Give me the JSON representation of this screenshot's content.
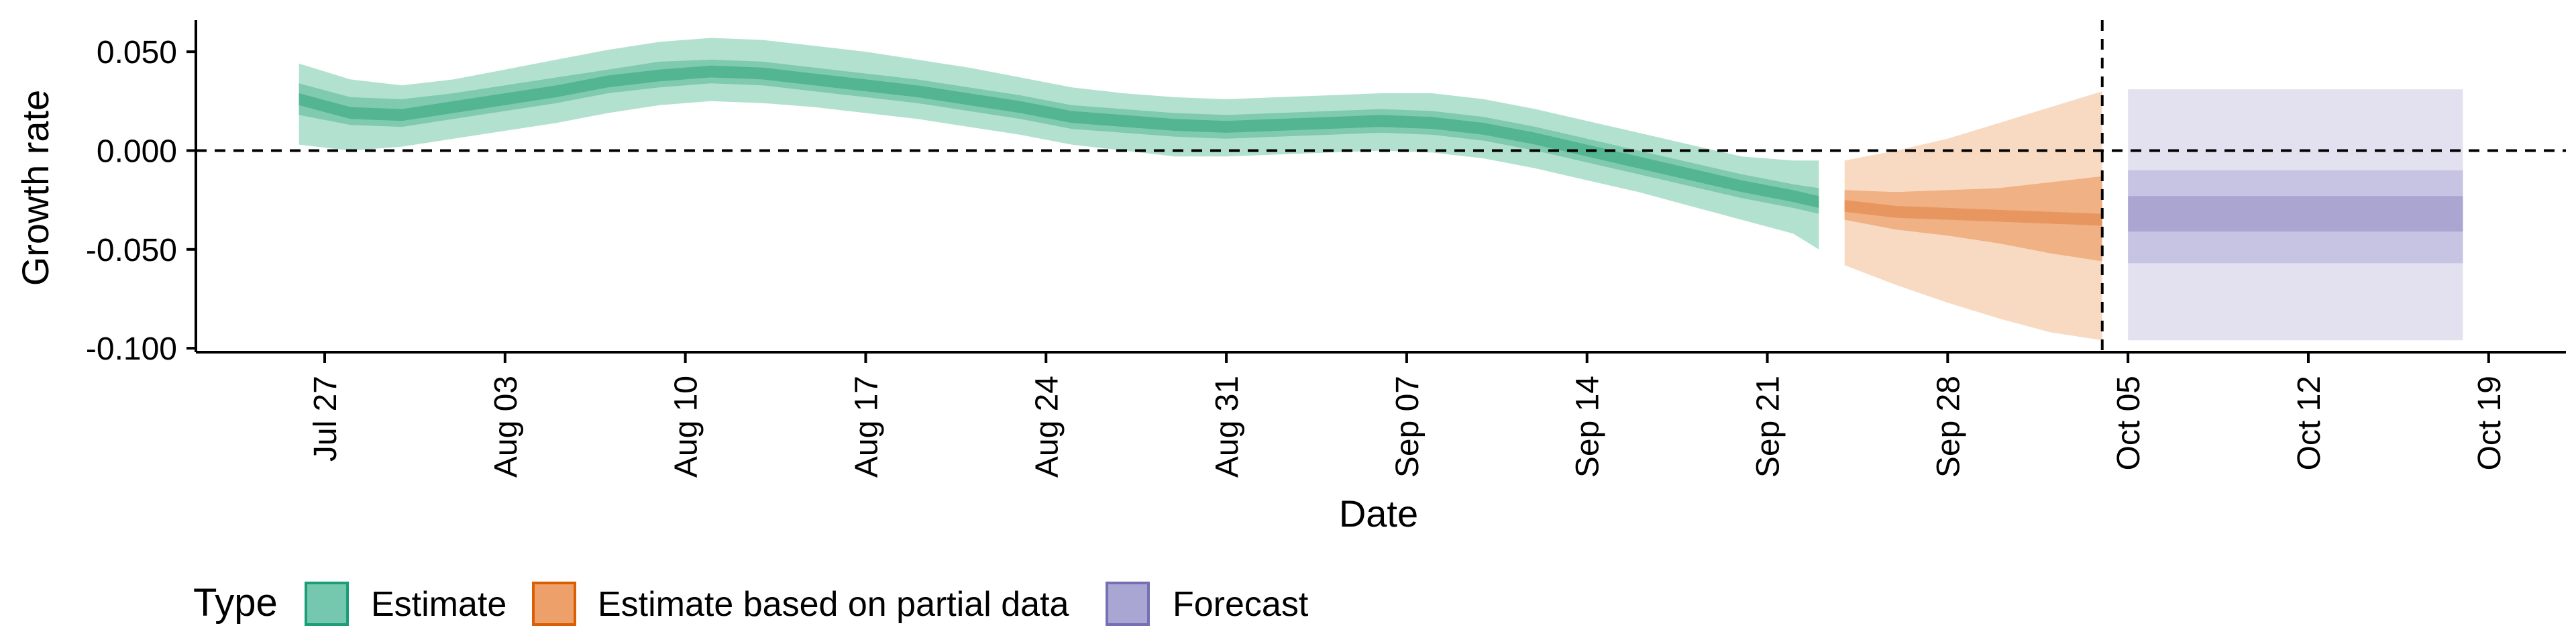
{
  "chart_data": {
    "type": "area",
    "xlabel": "Date",
    "ylabel": "Growth rate",
    "xlim": [
      "2020-07-22",
      "2020-10-22"
    ],
    "ylim": [
      -0.102,
      0.066
    ],
    "x_ticks": [
      "2020-07-27",
      "2020-08-03",
      "2020-08-10",
      "2020-08-17",
      "2020-08-24",
      "2020-08-31",
      "2020-09-07",
      "2020-09-14",
      "2020-09-21",
      "2020-09-28",
      "2020-10-05",
      "2020-10-12",
      "2020-10-19"
    ],
    "x_tick_labels": [
      "Jul 27",
      "Aug 03",
      "Aug 10",
      "Aug 17",
      "Aug 24",
      "Aug 31",
      "Sep 07",
      "Sep 14",
      "Sep 21",
      "Sep 28",
      "Oct 05",
      "Oct 12",
      "Oct 19"
    ],
    "y_ticks": [
      0.05,
      0.0,
      -0.05,
      -0.1
    ],
    "y_tick_labels": [
      "0.050",
      "0.000",
      "-0.050",
      "-0.100"
    ],
    "reference_lines": {
      "horizontal_y": 0.0,
      "vertical_x": "2020-10-04"
    },
    "grid": false,
    "legend": {
      "title": "Type",
      "placement": "bottom-left",
      "entries": [
        "Estimate",
        "Estimate based on partial data",
        "Forecast"
      ]
    },
    "series": [
      {
        "name": "Estimate",
        "color": "#1b9e77",
        "points": [
          {
            "x": "2020-07-26",
            "median": 0.026,
            "lo50": 0.018,
            "hi50": 0.034,
            "lo90": 0.003,
            "hi90": 0.044
          },
          {
            "x": "2020-07-28",
            "median": 0.019,
            "lo50": 0.013,
            "hi50": 0.027,
            "lo90": 0.0,
            "hi90": 0.036
          },
          {
            "x": "2020-07-30",
            "median": 0.018,
            "lo50": 0.012,
            "hi50": 0.026,
            "lo90": 0.002,
            "hi90": 0.033
          },
          {
            "x": "2020-08-01",
            "median": 0.022,
            "lo50": 0.016,
            "hi50": 0.029,
            "lo90": 0.006,
            "hi90": 0.036
          },
          {
            "x": "2020-08-03",
            "median": 0.026,
            "lo50": 0.02,
            "hi50": 0.033,
            "lo90": 0.01,
            "hi90": 0.041
          },
          {
            "x": "2020-08-05",
            "median": 0.03,
            "lo50": 0.024,
            "hi50": 0.037,
            "lo90": 0.014,
            "hi90": 0.046
          },
          {
            "x": "2020-08-07",
            "median": 0.035,
            "lo50": 0.029,
            "hi50": 0.041,
            "lo90": 0.019,
            "hi90": 0.051
          },
          {
            "x": "2020-08-09",
            "median": 0.038,
            "lo50": 0.032,
            "hi50": 0.045,
            "lo90": 0.023,
            "hi90": 0.055
          },
          {
            "x": "2020-08-11",
            "median": 0.04,
            "lo50": 0.034,
            "hi50": 0.046,
            "lo90": 0.025,
            "hi90": 0.057
          },
          {
            "x": "2020-08-13",
            "median": 0.039,
            "lo50": 0.033,
            "hi50": 0.045,
            "lo90": 0.024,
            "hi90": 0.056
          },
          {
            "x": "2020-08-15",
            "median": 0.036,
            "lo50": 0.03,
            "hi50": 0.042,
            "lo90": 0.022,
            "hi90": 0.053
          },
          {
            "x": "2020-08-17",
            "median": 0.033,
            "lo50": 0.027,
            "hi50": 0.039,
            "lo90": 0.019,
            "hi90": 0.05
          },
          {
            "x": "2020-08-19",
            "median": 0.03,
            "lo50": 0.024,
            "hi50": 0.036,
            "lo90": 0.016,
            "hi90": 0.046
          },
          {
            "x": "2020-08-21",
            "median": 0.026,
            "lo50": 0.02,
            "hi50": 0.032,
            "lo90": 0.012,
            "hi90": 0.042
          },
          {
            "x": "2020-08-23",
            "median": 0.022,
            "lo50": 0.016,
            "hi50": 0.028,
            "lo90": 0.008,
            "hi90": 0.037
          },
          {
            "x": "2020-08-25",
            "median": 0.017,
            "lo50": 0.011,
            "hi50": 0.023,
            "lo90": 0.003,
            "hi90": 0.032
          },
          {
            "x": "2020-08-27",
            "median": 0.015,
            "lo50": 0.009,
            "hi50": 0.021,
            "lo90": 0.0,
            "hi90": 0.029
          },
          {
            "x": "2020-08-29",
            "median": 0.013,
            "lo50": 0.007,
            "hi50": 0.019,
            "lo90": -0.003,
            "hi90": 0.027
          },
          {
            "x": "2020-08-31",
            "median": 0.012,
            "lo50": 0.006,
            "hi50": 0.018,
            "lo90": -0.003,
            "hi90": 0.026
          },
          {
            "x": "2020-09-02",
            "median": 0.013,
            "lo50": 0.007,
            "hi50": 0.019,
            "lo90": -0.002,
            "hi90": 0.027
          },
          {
            "x": "2020-09-04",
            "median": 0.014,
            "lo50": 0.008,
            "hi50": 0.02,
            "lo90": -0.001,
            "hi90": 0.028
          },
          {
            "x": "2020-09-06",
            "median": 0.015,
            "lo50": 0.009,
            "hi50": 0.021,
            "lo90": 0.0,
            "hi90": 0.029
          },
          {
            "x": "2020-09-08",
            "median": 0.014,
            "lo50": 0.008,
            "hi50": 0.02,
            "lo90": -0.001,
            "hi90": 0.029
          },
          {
            "x": "2020-09-10",
            "median": 0.011,
            "lo50": 0.005,
            "hi50": 0.017,
            "lo90": -0.004,
            "hi90": 0.026
          },
          {
            "x": "2020-09-12",
            "median": 0.006,
            "lo50": 0.0,
            "hi50": 0.012,
            "lo90": -0.009,
            "hi90": 0.021
          },
          {
            "x": "2020-09-14",
            "median": 0.0,
            "lo50": -0.006,
            "hi50": 0.006,
            "lo90": -0.015,
            "hi90": 0.015
          },
          {
            "x": "2020-09-16",
            "median": -0.006,
            "lo50": -0.012,
            "hi50": 0.0,
            "lo90": -0.021,
            "hi90": 0.009
          },
          {
            "x": "2020-09-18",
            "median": -0.012,
            "lo50": -0.018,
            "hi50": -0.006,
            "lo90": -0.028,
            "hi90": 0.003
          },
          {
            "x": "2020-09-20",
            "median": -0.018,
            "lo50": -0.024,
            "hi50": -0.012,
            "lo90": -0.035,
            "hi90": -0.003
          },
          {
            "x": "2020-09-22",
            "median": -0.023,
            "lo50": -0.029,
            "hi50": -0.017,
            "lo90": -0.042,
            "hi90": -0.005
          },
          {
            "x": "2020-09-23",
            "median": -0.026,
            "lo50": -0.032,
            "hi50": -0.019,
            "lo90": -0.05,
            "hi90": -0.005
          }
        ]
      },
      {
        "name": "Estimate based on partial data",
        "color": "#d95f02",
        "points": [
          {
            "x": "2020-09-24",
            "median": -0.028,
            "lo50": -0.035,
            "hi50": -0.02,
            "lo90": -0.058,
            "hi90": -0.005
          },
          {
            "x": "2020-09-26",
            "median": -0.031,
            "lo50": -0.04,
            "hi50": -0.021,
            "lo90": -0.068,
            "hi90": 0.0
          },
          {
            "x": "2020-09-28",
            "median": -0.032,
            "lo50": -0.043,
            "hi50": -0.02,
            "lo90": -0.077,
            "hi90": 0.006
          },
          {
            "x": "2020-09-30",
            "median": -0.033,
            "lo50": -0.047,
            "hi50": -0.019,
            "lo90": -0.085,
            "hi90": 0.014
          },
          {
            "x": "2020-10-02",
            "median": -0.034,
            "lo50": -0.052,
            "hi50": -0.016,
            "lo90": -0.092,
            "hi90": 0.022
          },
          {
            "x": "2020-10-04",
            "median": -0.035,
            "lo50": -0.056,
            "hi50": -0.013,
            "lo90": -0.096,
            "hi90": 0.03
          }
        ]
      },
      {
        "name": "Forecast",
        "color": "#7570b3",
        "points": [
          {
            "x": "2020-10-05",
            "median": -0.032,
            "lo20": -0.041,
            "hi20": -0.023,
            "lo50": -0.057,
            "hi50": -0.01,
            "lo90": -0.096,
            "hi90": 0.031
          },
          {
            "x": "2020-10-18",
            "median": -0.032,
            "lo20": -0.041,
            "hi20": -0.023,
            "lo50": -0.057,
            "hi50": -0.01,
            "lo90": -0.096,
            "hi90": 0.031
          }
        ]
      }
    ]
  }
}
